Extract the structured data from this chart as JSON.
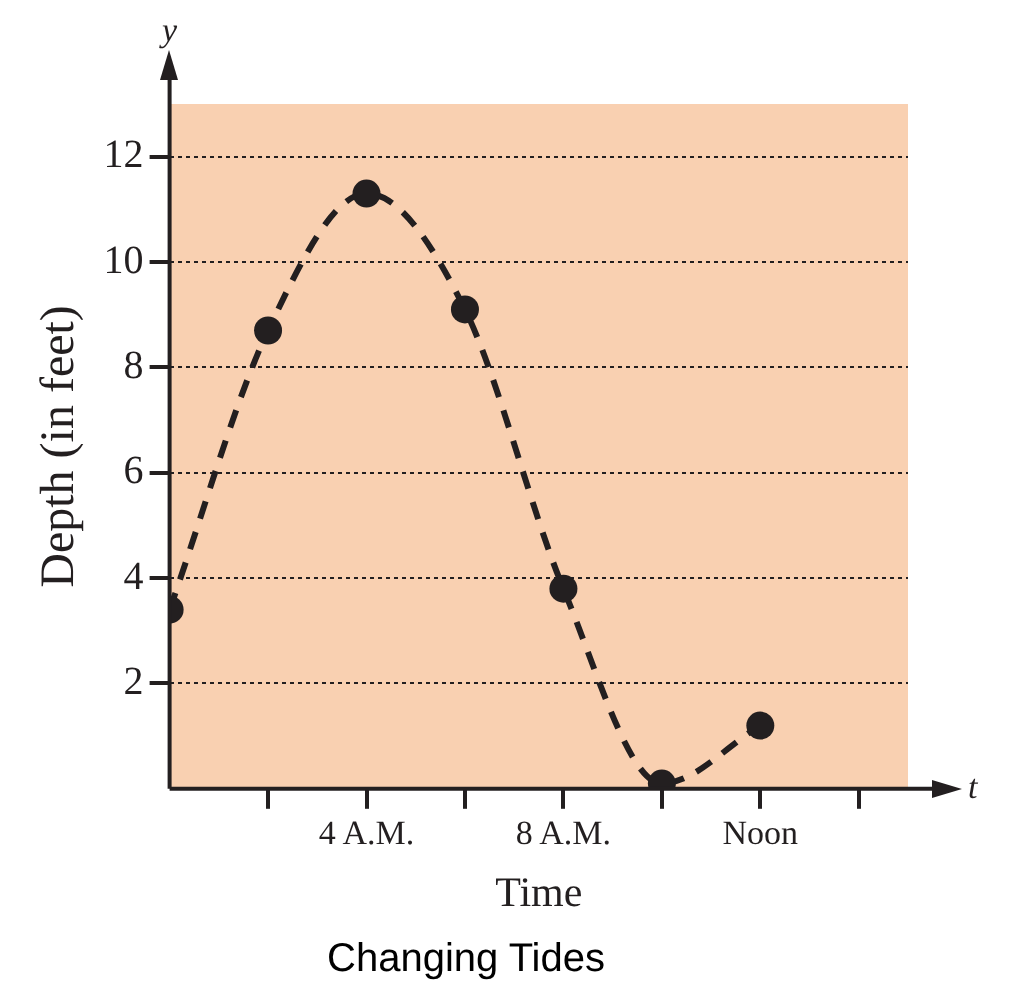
{
  "chart_data": {
    "type": "line",
    "title": "Changing Tides",
    "xlabel": "Time",
    "ylabel": "Depth (in feet)",
    "annotations": [
      "y",
      "t"
    ],
    "x": [
      0,
      2,
      4,
      6,
      8,
      10,
      12
    ],
    "series": [
      {
        "color": "#231f20",
        "values": [
          3.4,
          8.7,
          11.3,
          9.1,
          3.8,
          0.1,
          1.2
        ]
      }
    ],
    "xlim": [
      0,
      15
    ],
    "ylim": [
      0,
      13
    ],
    "xticks": [
      {
        "value": 2,
        "label": null
      },
      {
        "value": 4,
        "label": "4 A.M."
      },
      {
        "value": 6,
        "label": null
      },
      {
        "value": 8,
        "label": "8 A.M."
      },
      {
        "value": 10,
        "label": null
      },
      {
        "value": 12,
        "label": "Noon"
      },
      {
        "value": 14,
        "label": null
      }
    ],
    "yticks": [
      2,
      4,
      6,
      8,
      10,
      12
    ],
    "grid": "y",
    "marker": "circle",
    "line_style": "dashed",
    "legend": false
  }
}
